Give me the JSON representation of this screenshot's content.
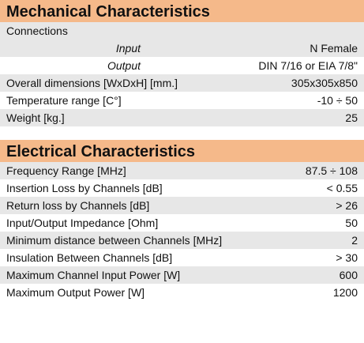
{
  "mechanical": {
    "title": "Mechanical Characteristics",
    "connections_label": "Connections",
    "rows": [
      {
        "label": "Input",
        "value": "N Female"
      },
      {
        "label": "Output",
        "value": "DIN 7/16 or EIA 7/8\""
      },
      {
        "label": "Overall dimensions [WxDxH] [mm.]",
        "value": "305x305x850"
      },
      {
        "label": "Temperature range [C°]",
        "value": "-10 ÷ 50"
      },
      {
        "label": "Weight [kg.]",
        "value": "25"
      }
    ]
  },
  "electrical": {
    "title": "Electrical Characteristics",
    "rows": [
      {
        "label": "Frequency Range [MHz]",
        "value": "87.5 ÷ 108"
      },
      {
        "label": "Insertion Loss by Channels [dB]",
        "value": "< 0.55"
      },
      {
        "label": "Return loss by Channels [dB]",
        "value": "> 26"
      },
      {
        "label": "Input/Output Impedance [Ohm]",
        "value": "50"
      },
      {
        "label": "Minimum distance between Channels [MHz]",
        "value": "2"
      },
      {
        "label": "Insulation Between Channels [dB]",
        "value": "> 30"
      },
      {
        "label": "Maximum Channel Input Power [W]",
        "value": "600"
      },
      {
        "label": "Maximum Output Power [W]",
        "value": "1200"
      }
    ]
  },
  "colors": {
    "header_bg": "#f5b98a",
    "shaded_row": "#e7e7e7"
  }
}
